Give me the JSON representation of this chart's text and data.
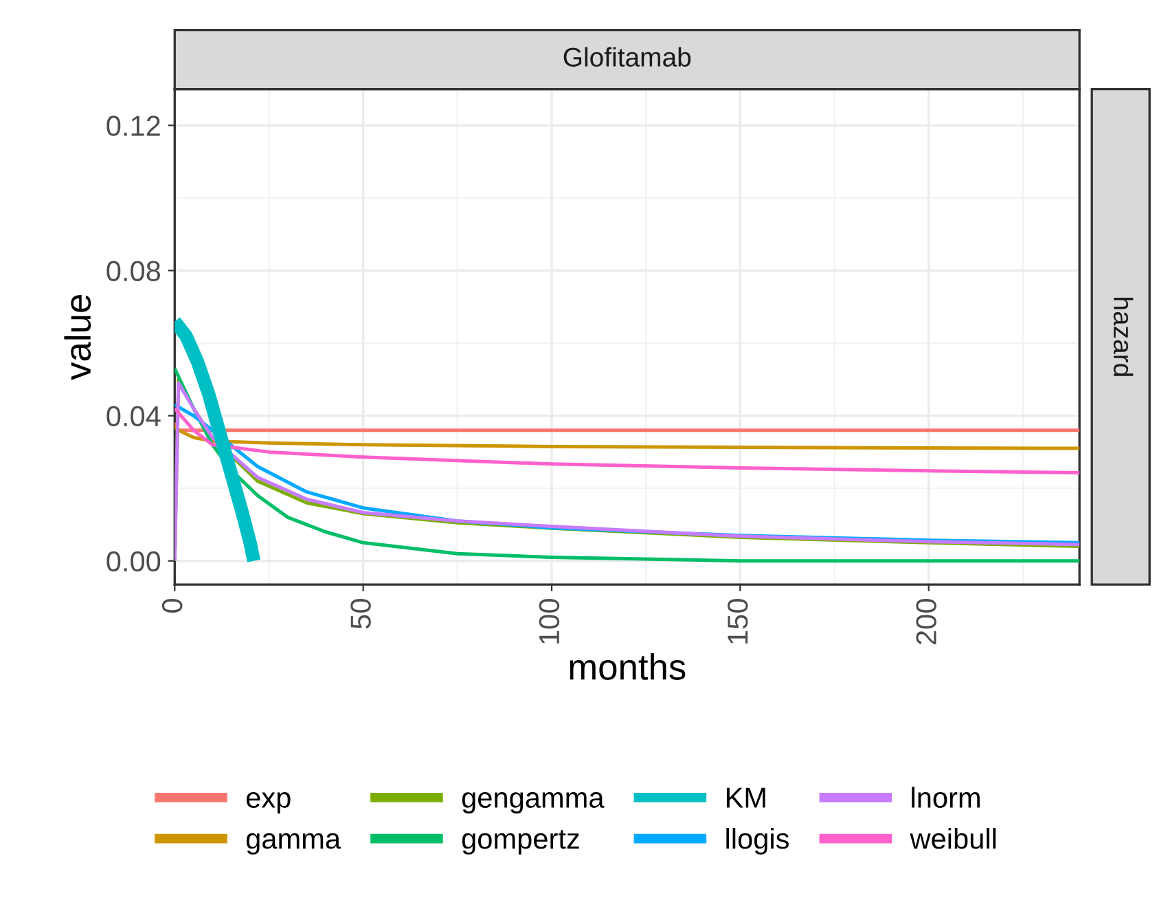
{
  "chart_data": {
    "type": "line",
    "title": "Glofitamab",
    "xlabel": "months",
    "ylabel": "value",
    "annotations": [
      "hazard"
    ],
    "xlim": [
      0,
      240
    ],
    "xticks": [
      0,
      50,
      100,
      150,
      200
    ],
    "ylim": [
      -0.0065,
      0.13
    ],
    "yticks": [
      {
        "value": 0.0,
        "label": "0.00"
      },
      {
        "value": 0.04,
        "label": "0.04"
      },
      {
        "value": 0.08,
        "label": "0.08"
      },
      {
        "value": 0.12,
        "label": "0.12"
      }
    ],
    "grid": true,
    "legend": "bottom",
    "line_style": "solid",
    "marker": "none",
    "series": [
      {
        "name": "exp",
        "color": "#f8766d",
        "x": [
          0,
          1,
          50,
          100,
          150,
          200,
          240
        ],
        "values": [
          0.038,
          0.036,
          0.036,
          0.036,
          0.036,
          0.036,
          0.036
        ]
      },
      {
        "name": "gamma",
        "color": "#cd9600",
        "x": [
          0,
          1,
          5,
          10,
          25,
          50,
          100,
          150,
          200,
          240
        ],
        "values": [
          0.037,
          0.036,
          0.034,
          0.033,
          0.0325,
          0.032,
          0.0315,
          0.0313,
          0.0311,
          0.031
        ]
      },
      {
        "name": "gengamma",
        "color": "#7cae00",
        "x": [
          0,
          1,
          5,
          10,
          22,
          35,
          50,
          75,
          100,
          150,
          200,
          240
        ],
        "values": [
          0.0,
          0.05,
          0.042,
          0.034,
          0.022,
          0.016,
          0.013,
          0.0105,
          0.009,
          0.0065,
          0.005,
          0.004
        ]
      },
      {
        "name": "gompertz",
        "color": "#00be67",
        "x": [
          0,
          5,
          10,
          15,
          22,
          30,
          40,
          50,
          75,
          100,
          150,
          240
        ],
        "values": [
          0.053,
          0.042,
          0.032,
          0.025,
          0.018,
          0.012,
          0.008,
          0.005,
          0.002,
          0.001,
          0.0,
          0.0
        ]
      },
      {
        "name": "KM",
        "color": "#00bfc4",
        "x": [
          0,
          3,
          6,
          9,
          12,
          15,
          18,
          20,
          21
        ],
        "values": [
          0.066,
          0.062,
          0.055,
          0.046,
          0.035,
          0.024,
          0.013,
          0.005,
          0.0
        ]
      },
      {
        "name": "llogis",
        "color": "#00a9ff",
        "x": [
          0,
          5,
          10,
          22,
          35,
          50,
          75,
          100,
          150,
          200,
          240
        ],
        "values": [
          0.043,
          0.04,
          0.036,
          0.026,
          0.019,
          0.0146,
          0.011,
          0.0091,
          0.007,
          0.0057,
          0.005
        ]
      },
      {
        "name": "lnorm",
        "color": "#c77cff",
        "x": [
          0,
          1,
          5,
          10,
          22,
          35,
          50,
          75,
          100,
          150,
          200,
          240
        ],
        "values": [
          0.0,
          0.049,
          0.042,
          0.034,
          0.023,
          0.017,
          0.0133,
          0.011,
          0.0095,
          0.0068,
          0.0053,
          0.0045
        ]
      },
      {
        "name": "weibull",
        "color": "#ff61cc",
        "x": [
          0,
          5,
          10,
          25,
          50,
          100,
          150,
          200,
          240
        ],
        "values": [
          0.042,
          0.036,
          0.032,
          0.03,
          0.0286,
          0.0267,
          0.0256,
          0.0248,
          0.0243
        ]
      }
    ]
  }
}
